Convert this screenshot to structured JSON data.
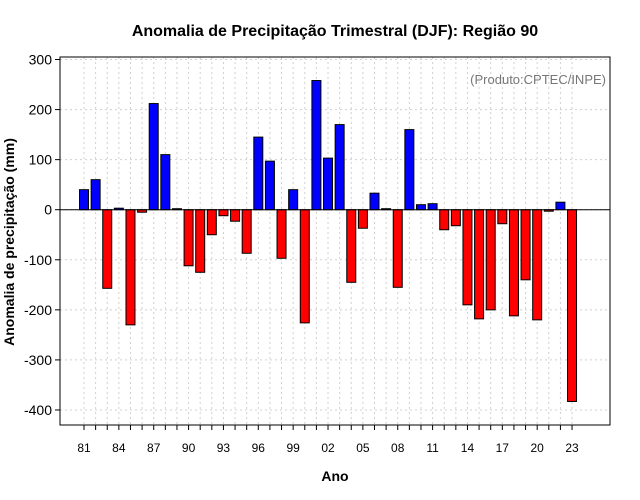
{
  "chart_data": {
    "type": "bar",
    "title": "Anomalia de Precipitação Trimestral (DJF): Região 90",
    "xlabel": "Ano",
    "ylabel": "Anomalia de precipitação (mm)",
    "annotation": "(Produto:CPTEC/INPE)",
    "ylim": [
      -430,
      305
    ],
    "yticks": [
      300,
      200,
      100,
      0,
      -100,
      -200,
      -300,
      -400
    ],
    "xtick_labels": [
      "81",
      "84",
      "87",
      "90",
      "93",
      "96",
      "99",
      "02",
      "05",
      "08",
      "11",
      "14",
      "17",
      "20",
      "23"
    ],
    "positive_color": "#0000ff",
    "negative_color": "#ff0000",
    "grid": true,
    "years": [
      1981,
      1982,
      1983,
      1984,
      1985,
      1986,
      1987,
      1988,
      1989,
      1990,
      1991,
      1992,
      1993,
      1994,
      1995,
      1996,
      1997,
      1998,
      1999,
      2000,
      2001,
      2002,
      2003,
      2004,
      2005,
      2006,
      2007,
      2008,
      2009,
      2010,
      2011,
      2012,
      2013,
      2014,
      2015,
      2016,
      2017,
      2018,
      2019,
      2020,
      2021,
      2022,
      2023
    ],
    "values": [
      40,
      60,
      -157,
      3,
      -230,
      -5,
      212,
      110,
      2,
      -112,
      -125,
      -50,
      -12,
      -23,
      -87,
      145,
      97,
      -97,
      40,
      -226,
      258,
      103,
      170,
      -145,
      -37,
      33,
      2,
      -155,
      160,
      10,
      12,
      -40,
      -32,
      -190,
      -218,
      -200,
      -28,
      -212,
      -140,
      -220,
      -3,
      15,
      -383
    ]
  }
}
